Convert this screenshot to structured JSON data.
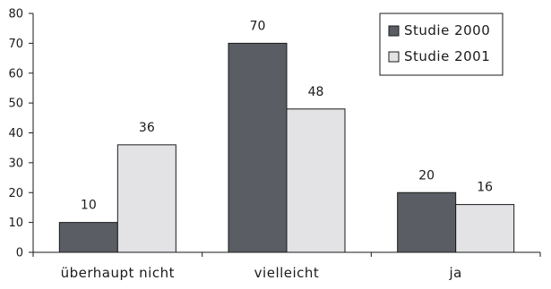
{
  "chart_data": {
    "type": "bar",
    "categories": [
      "überhaupt nicht",
      "vielleicht",
      "ja"
    ],
    "series": [
      {
        "name": "Studie 2000",
        "values": [
          10,
          70,
          20
        ],
        "color": "#5a5d64"
      },
      {
        "name": "Studie 2001",
        "values": [
          36,
          48,
          16
        ],
        "color": "#e3e3e6"
      }
    ],
    "ylim": [
      0,
      80
    ],
    "yticks": [
      0,
      10,
      20,
      30,
      40,
      50,
      60,
      70,
      80
    ],
    "legend_position": "top-right",
    "grid": false
  }
}
